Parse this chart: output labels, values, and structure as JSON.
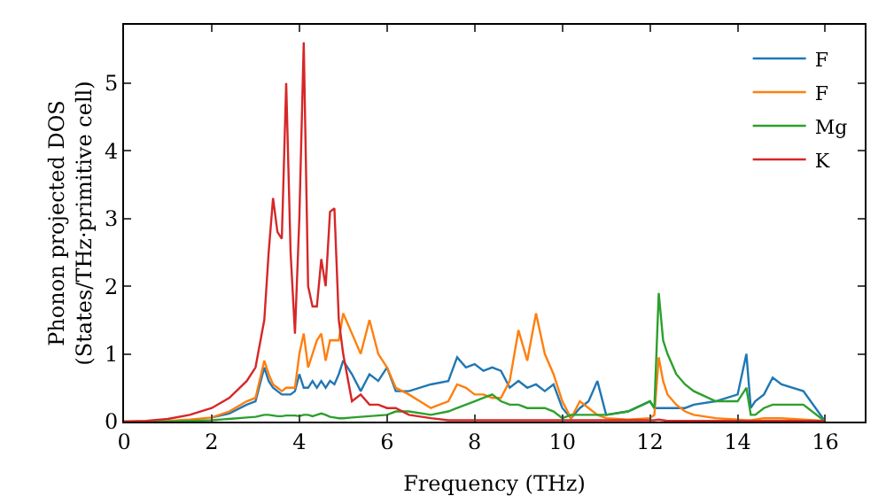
{
  "chart_data": {
    "type": "line",
    "xlabel": "Frequency (THz)",
    "ylabel": "Phonon projected DOS\n(States/THz·primitive cell)",
    "x": [
      0,
      0.5,
      1,
      1.5,
      2,
      2.4,
      2.8,
      3.0,
      3.2,
      3.3,
      3.4,
      3.5,
      3.6,
      3.7,
      3.8,
      3.9,
      4.0,
      4.1,
      4.2,
      4.3,
      4.4,
      4.5,
      4.6,
      4.7,
      4.8,
      4.9,
      5.0,
      5.2,
      5.4,
      5.6,
      5.8,
      6.0,
      6.2,
      6.5,
      7.0,
      7.4,
      7.6,
      7.8,
      8.0,
      8.2,
      8.4,
      8.6,
      8.8,
      9.0,
      9.2,
      9.4,
      9.6,
      9.8,
      10.0,
      10.2,
      10.4,
      10.6,
      10.8,
      11.0,
      11.5,
      12.0,
      12.1,
      12.2,
      12.3,
      12.4,
      12.6,
      12.8,
      13.0,
      13.5,
      14.0,
      14.2,
      14.3,
      14.4,
      14.6,
      14.8,
      15.0,
      15.5,
      16.0
    ],
    "series": [
      {
        "name": "F",
        "color": "#1f77b4",
        "values": [
          null,
          null,
          null,
          null,
          0.06,
          0.12,
          0.25,
          0.3,
          0.8,
          0.6,
          0.5,
          0.45,
          0.4,
          0.4,
          0.4,
          0.45,
          0.7,
          0.5,
          0.5,
          0.6,
          0.5,
          0.6,
          0.5,
          0.6,
          0.55,
          0.7,
          0.9,
          0.7,
          0.45,
          0.7,
          0.6,
          0.8,
          0.45,
          0.45,
          0.55,
          0.6,
          0.95,
          0.8,
          0.85,
          0.75,
          0.8,
          0.75,
          0.5,
          0.6,
          0.5,
          0.55,
          0.45,
          0.55,
          0.2,
          0.05,
          0.2,
          0.3,
          0.6,
          0.1,
          0.15,
          0.3,
          0.2,
          0.2,
          0.2,
          0.2,
          0.2,
          0.2,
          0.25,
          0.3,
          0.4,
          1.0,
          0.2,
          0.3,
          0.4,
          0.65,
          0.55,
          0.45,
          0
        ]
      },
      {
        "name": "F",
        "color": "#ff7f0e",
        "values": [
          0,
          0,
          0.01,
          0.03,
          0.06,
          0.15,
          0.3,
          0.35,
          0.9,
          0.7,
          0.55,
          0.5,
          0.45,
          0.5,
          0.5,
          0.5,
          1.0,
          1.3,
          0.8,
          1.0,
          1.2,
          1.3,
          0.9,
          1.2,
          1.2,
          1.2,
          1.6,
          1.3,
          1.0,
          1.5,
          1.0,
          0.8,
          0.5,
          0.4,
          0.2,
          0.3,
          0.55,
          0.5,
          0.4,
          0.4,
          0.35,
          0.35,
          0.6,
          1.35,
          0.9,
          1.6,
          1.0,
          0.7,
          0.3,
          0.05,
          0.3,
          0.2,
          0.1,
          0.05,
          0.03,
          0.05,
          0.1,
          0.95,
          0.6,
          0.4,
          0.25,
          0.15,
          0.1,
          0.05,
          0.03,
          0.02,
          0.02,
          0.03,
          0.05,
          0.05,
          0.05,
          0.03,
          0.01
        ]
      },
      {
        "name": "Mg",
        "color": "#2ca02c",
        "values": [
          0,
          0,
          0,
          0.01,
          0.02,
          0.04,
          0.06,
          0.07,
          0.1,
          0.1,
          0.09,
          0.08,
          0.08,
          0.09,
          0.09,
          0.09,
          0.08,
          0.1,
          0.1,
          0.08,
          0.1,
          0.12,
          0.1,
          0.07,
          0.06,
          0.05,
          0.05,
          0.06,
          0.07,
          0.08,
          0.09,
          0.1,
          0.15,
          0.15,
          0.1,
          0.15,
          0.2,
          0.25,
          0.3,
          0.35,
          0.4,
          0.3,
          0.25,
          0.25,
          0.2,
          0.2,
          0.2,
          0.15,
          0.05,
          0.1,
          0.1,
          0.1,
          0.1,
          0.1,
          0.15,
          0.3,
          0.2,
          1.9,
          1.2,
          1.0,
          0.7,
          0.55,
          0.45,
          0.3,
          0.3,
          0.5,
          0.1,
          0.1,
          0.2,
          0.25,
          0.25,
          0.25,
          0
        ]
      },
      {
        "name": "K",
        "color": "#d62728",
        "values": [
          0,
          0.01,
          0.04,
          0.1,
          0.2,
          0.35,
          0.6,
          0.8,
          1.5,
          2.5,
          3.3,
          2.8,
          2.7,
          5.0,
          2.5,
          1.3,
          3.0,
          5.6,
          2.0,
          1.7,
          1.7,
          2.4,
          2.0,
          3.1,
          3.15,
          1.5,
          1.0,
          0.3,
          0.4,
          0.25,
          0.25,
          0.2,
          0.2,
          0.1,
          0.05,
          0.02,
          0.02,
          0.02,
          0.02,
          0.02,
          0.02,
          0.02,
          0.02,
          0.02,
          0.02,
          0.02,
          0.02,
          0.02,
          0.02,
          0.02,
          0.02,
          0.02,
          0.02,
          0.02,
          0.02,
          0.02,
          0.02,
          0.03,
          0.02,
          0.01,
          0.01,
          0.01,
          0.01,
          0.01,
          0.01,
          0.01,
          0.01,
          0.01,
          0.01,
          0.01,
          0.01,
          0.01,
          0.01
        ]
      }
    ],
    "xlim": [
      0,
      16.9
    ],
    "xticks": [
      0,
      2,
      4,
      6,
      8,
      10,
      12,
      14,
      16
    ],
    "ylim": [
      0,
      5.86
    ],
    "yticks": [
      0,
      1,
      2,
      3,
      4,
      5
    ],
    "grid": false,
    "legend": "top right",
    "marker": "none",
    "line_style": "solid"
  }
}
